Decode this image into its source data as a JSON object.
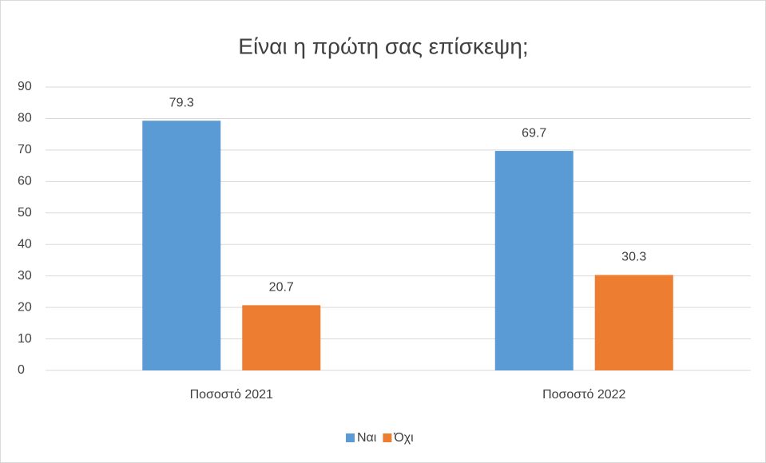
{
  "chart_data": {
    "type": "bar",
    "title": "Είναι η πρώτη σας επίσκεψη;",
    "categories": [
      "Ποσοστό 2021",
      "Ποσοστό 2022"
    ],
    "series": [
      {
        "name": "Ναι",
        "color": "#5b9bd5",
        "values": [
          79.3,
          69.7
        ]
      },
      {
        "name": "Όχι",
        "color": "#ed7d31",
        "values": [
          20.7,
          30.3
        ]
      }
    ],
    "ylim": [
      0,
      90
    ],
    "yticks": [
      0,
      10,
      20,
      30,
      40,
      50,
      60,
      70,
      80,
      90
    ],
    "grid": true,
    "legend": "bottom"
  }
}
